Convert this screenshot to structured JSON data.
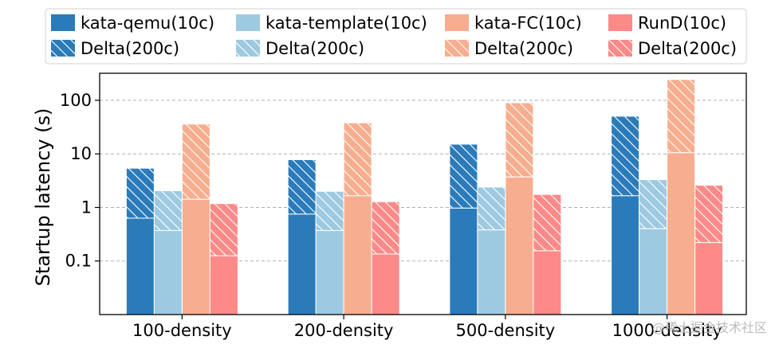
{
  "chart_data": {
    "type": "bar",
    "stacked_overlay": true,
    "categories": [
      "100-density",
      "200-density",
      "500-density",
      "1000-density"
    ],
    "ylabel": "Startup latency (s)",
    "yscale": "log",
    "ylim": [
      0.01,
      320
    ],
    "yticks": [
      0.1,
      1,
      10,
      100
    ],
    "ytick_labels": [
      "0.1",
      "1",
      "10",
      "100"
    ],
    "grid": "horizontal dashed",
    "legend_position": "top",
    "series": [
      {
        "name": "kata-qemu(10c)",
        "delta_name": "Delta(200c)",
        "color": "#2b7bba",
        "base": [
          0.63,
          0.75,
          0.97,
          1.65
        ],
        "total": [
          5.4,
          7.8,
          15.2,
          50.5
        ]
      },
      {
        "name": "kata-template(10c)",
        "delta_name": "Delta(200c)",
        "color": "#9ecae1",
        "base": [
          0.37,
          0.37,
          0.38,
          0.4
        ],
        "total": [
          2.05,
          2.0,
          2.4,
          3.3
        ]
      },
      {
        "name": "kata-FC(10c)",
        "delta_name": "Delta(200c)",
        "color": "#f6ae8f",
        "base": [
          1.42,
          1.65,
          3.7,
          10.5
        ],
        "total": [
          36,
          38,
          90,
          245
        ]
      },
      {
        "name": "RunD(10c)",
        "delta_name": "Delta(200c)",
        "color": "#fb8a88",
        "base": [
          0.125,
          0.135,
          0.155,
          0.22
        ],
        "total": [
          1.18,
          1.28,
          1.75,
          2.6
        ]
      }
    ]
  },
  "watermark": "@稀土掘金技术社区"
}
